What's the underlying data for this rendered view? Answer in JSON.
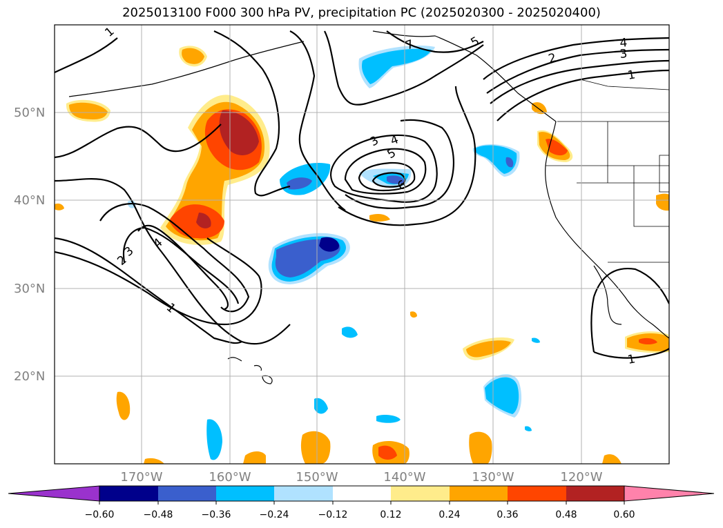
{
  "title": "2025013100 F000 300 hPa PV, precipitation PC (2025020300 - 2025020400)",
  "lat_labels": [
    "50°N",
    "40°N",
    "30°N",
    "20°N"
  ],
  "lon_labels": [
    "170°W",
    "160°W",
    "150°W",
    "140°W",
    "130°W",
    "120°W"
  ],
  "pv_contour_labels": [
    "1",
    "1",
    "1",
    "1",
    "2",
    "2",
    "3",
    "3",
    "4",
    "4",
    "4",
    "5",
    "5",
    "6",
    "7"
  ],
  "colorbar": {
    "tick_labels": [
      "−0.60",
      "−0.48",
      "−0.36",
      "−0.24",
      "−0.12",
      "0.12",
      "0.24",
      "0.36",
      "0.48",
      "0.60"
    ],
    "colors": [
      "#9a32cd",
      "#00008b",
      "#3a5fcd",
      "#00bfff",
      "#b0e2ff",
      "#ffffff",
      "#ffec8b",
      "#ffa500",
      "#ff4500",
      "#b22222",
      "#ff82ab"
    ]
  },
  "colors": {
    "strong_negative": "#00008b",
    "negative": "#3a5fcd",
    "moderate_negative": "#00bfff",
    "weak_negative": "#b0e2ff",
    "weak_positive": "#ffec8b",
    "moderate_positive": "#ffa500",
    "positive": "#ff4500",
    "strong_positive": "#b22222"
  }
}
